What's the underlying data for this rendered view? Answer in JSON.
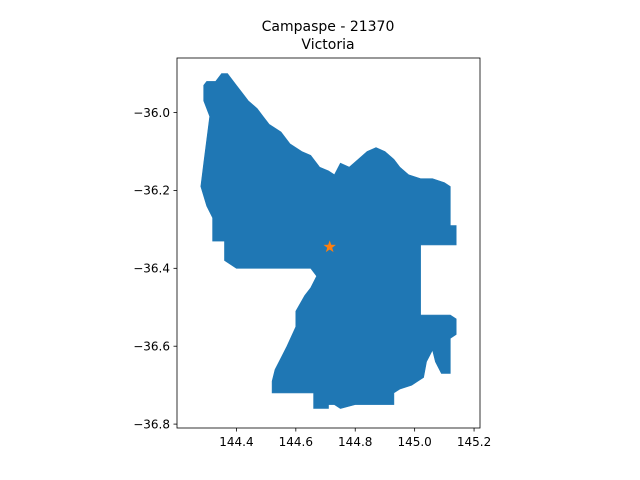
{
  "chart_data": {
    "type": "map",
    "title_line1": "Campaspe - 21370",
    "title_line2": "Victoria",
    "xlabel": "",
    "ylabel": "",
    "xlim": [
      144.2,
      145.22
    ],
    "ylim": [
      -36.81,
      -35.86
    ],
    "x_ticks": [
      {
        "value": 144.4,
        "label": "144.4"
      },
      {
        "value": 144.6,
        "label": "144.6"
      },
      {
        "value": 144.8,
        "label": "144.8"
      },
      {
        "value": 145.0,
        "label": "145.0"
      },
      {
        "value": 145.2,
        "label": "145.2"
      }
    ],
    "y_ticks": [
      {
        "value": -36.0,
        "label": "−36.0"
      },
      {
        "value": -36.2,
        "label": "−36.2"
      },
      {
        "value": -36.4,
        "label": "−36.4"
      },
      {
        "value": -36.6,
        "label": "−36.6"
      },
      {
        "value": -36.8,
        "label": "−36.8"
      }
    ],
    "region_color": "#1f77b4",
    "marker_color": "#ff7f0e",
    "marker": {
      "lon": 144.714,
      "lat": -36.345,
      "symbol": "star"
    },
    "boundary": [
      [
        144.29,
        -35.93
      ],
      [
        144.3,
        -35.92
      ],
      [
        144.33,
        -35.92
      ],
      [
        144.35,
        -35.9
      ],
      [
        144.37,
        -35.9
      ],
      [
        144.4,
        -35.93
      ],
      [
        144.42,
        -35.95
      ],
      [
        144.44,
        -35.97
      ],
      [
        144.47,
        -35.99
      ],
      [
        144.49,
        -36.01
      ],
      [
        144.51,
        -36.03
      ],
      [
        144.55,
        -36.05
      ],
      [
        144.58,
        -36.08
      ],
      [
        144.62,
        -36.1
      ],
      [
        144.65,
        -36.11
      ],
      [
        144.68,
        -36.14
      ],
      [
        144.71,
        -36.15
      ],
      [
        144.73,
        -36.16
      ],
      [
        144.75,
        -36.13
      ],
      [
        144.78,
        -36.14
      ],
      [
        144.81,
        -36.12
      ],
      [
        144.84,
        -36.1
      ],
      [
        144.87,
        -36.09
      ],
      [
        144.9,
        -36.1
      ],
      [
        144.93,
        -36.12
      ],
      [
        144.95,
        -36.14
      ],
      [
        144.98,
        -36.16
      ],
      [
        145.02,
        -36.17
      ],
      [
        145.06,
        -36.17
      ],
      [
        145.1,
        -36.18
      ],
      [
        145.12,
        -36.19
      ],
      [
        145.12,
        -36.29
      ],
      [
        145.14,
        -36.29
      ],
      [
        145.14,
        -36.34
      ],
      [
        145.02,
        -36.34
      ],
      [
        145.02,
        -36.52
      ],
      [
        145.12,
        -36.52
      ],
      [
        145.14,
        -36.53
      ],
      [
        145.14,
        -36.57
      ],
      [
        145.12,
        -36.58
      ],
      [
        145.12,
        -36.67
      ],
      [
        145.09,
        -36.67
      ],
      [
        145.07,
        -36.64
      ],
      [
        145.06,
        -36.61
      ],
      [
        145.04,
        -36.64
      ],
      [
        145.03,
        -36.68
      ],
      [
        144.99,
        -36.7
      ],
      [
        144.95,
        -36.71
      ],
      [
        144.93,
        -36.72
      ],
      [
        144.93,
        -36.75
      ],
      [
        144.85,
        -36.75
      ],
      [
        144.8,
        -36.75
      ],
      [
        144.75,
        -36.76
      ],
      [
        144.73,
        -36.75
      ],
      [
        144.71,
        -36.75
      ],
      [
        144.71,
        -36.76
      ],
      [
        144.66,
        -36.76
      ],
      [
        144.66,
        -36.72
      ],
      [
        144.52,
        -36.72
      ],
      [
        144.52,
        -36.69
      ],
      [
        144.53,
        -36.66
      ],
      [
        144.55,
        -36.63
      ],
      [
        144.57,
        -36.6
      ],
      [
        144.6,
        -36.55
      ],
      [
        144.6,
        -36.51
      ],
      [
        144.63,
        -36.47
      ],
      [
        144.65,
        -36.45
      ],
      [
        144.67,
        -36.42
      ],
      [
        144.65,
        -36.4
      ],
      [
        144.53,
        -36.4
      ],
      [
        144.4,
        -36.4
      ],
      [
        144.36,
        -36.38
      ],
      [
        144.36,
        -36.33
      ],
      [
        144.32,
        -36.33
      ],
      [
        144.32,
        -36.27
      ],
      [
        144.3,
        -36.24
      ],
      [
        144.28,
        -36.19
      ],
      [
        144.29,
        -36.13
      ],
      [
        144.3,
        -36.07
      ],
      [
        144.31,
        -36.01
      ],
      [
        144.29,
        -35.97
      ]
    ]
  }
}
